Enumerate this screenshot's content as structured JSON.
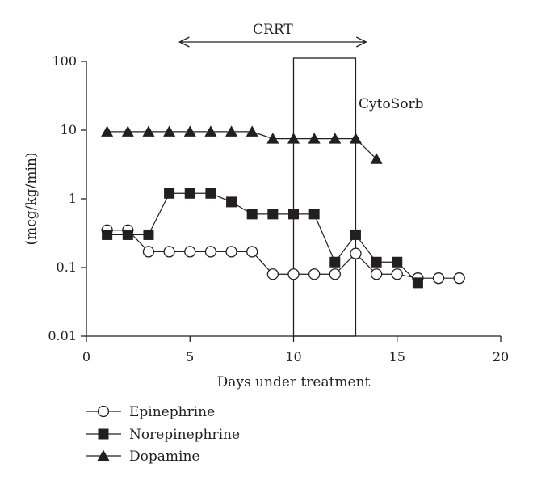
{
  "chart_data": {
    "type": "line",
    "title": "",
    "xlabel": "Days under treatment",
    "ylabel": "(mcg/kg/min)",
    "xlim": [
      0,
      20
    ],
    "ylim": [
      0.01,
      100
    ],
    "yscale": "log",
    "x_ticks": [
      0,
      5,
      10,
      15,
      20
    ],
    "y_ticks": [
      0.01,
      0.1,
      1,
      10,
      100
    ],
    "y_tick_labels": [
      "0.01",
      "0.1",
      "1",
      "10",
      "100"
    ],
    "grid": false,
    "legend_position": "bottom-left",
    "annotations": {
      "crrt": {
        "label": "CRRT",
        "x_start": 4.5,
        "x_end": 13.5
      },
      "cytosorb": {
        "label": "CytoSorb",
        "x_start": 10,
        "x_end": 13
      }
    },
    "series": [
      {
        "name": "Epinephrine",
        "marker": "open-circle",
        "x": [
          1,
          2,
          3,
          4,
          5,
          6,
          7,
          8,
          9,
          10,
          11,
          12,
          13,
          14,
          15,
          16,
          17,
          18
        ],
        "values": [
          0.35,
          0.35,
          0.17,
          0.17,
          0.17,
          0.17,
          0.17,
          0.17,
          0.08,
          0.08,
          0.08,
          0.08,
          0.16,
          0.08,
          0.08,
          0.07,
          0.07,
          0.07
        ]
      },
      {
        "name": "Norepinephrine",
        "marker": "filled-square",
        "x": [
          1,
          2,
          3,
          4,
          5,
          6,
          7,
          8,
          9,
          10,
          11,
          12,
          13,
          14,
          15,
          16
        ],
        "values": [
          0.3,
          0.3,
          0.3,
          1.2,
          1.2,
          1.2,
          0.9,
          0.6,
          0.6,
          0.6,
          0.6,
          0.12,
          0.3,
          0.12,
          0.12,
          0.06
        ]
      },
      {
        "name": "Dopamine",
        "marker": "filled-triangle",
        "x": [
          1,
          2,
          3,
          4,
          5,
          6,
          7,
          8,
          9,
          10,
          11,
          12,
          13,
          14
        ],
        "values": [
          9.5,
          9.5,
          9.5,
          9.5,
          9.5,
          9.5,
          9.5,
          9.5,
          7.5,
          7.5,
          7.5,
          7.5,
          7.5,
          3.8
        ]
      }
    ]
  }
}
